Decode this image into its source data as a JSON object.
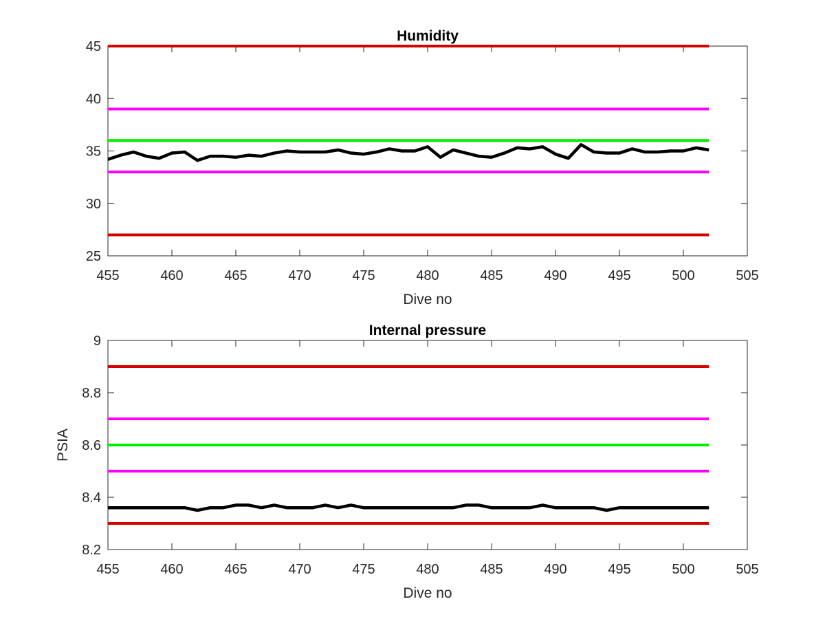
{
  "chart_data": [
    {
      "type": "line",
      "title": "Humidity",
      "xlabel": "Dive no",
      "ylabel": "",
      "xlim": [
        455,
        505
      ],
      "ylim": [
        25,
        45
      ],
      "xticks": [
        455,
        460,
        465,
        470,
        475,
        480,
        485,
        490,
        495,
        500,
        505
      ],
      "yticks": [
        25,
        30,
        35,
        40,
        45
      ],
      "xtick_labels": [
        "455",
        "460",
        "465",
        "470",
        "475",
        "480",
        "485",
        "490",
        "495",
        "500",
        "505"
      ],
      "ytick_labels": [
        "25",
        "30",
        "35",
        "40",
        "45"
      ],
      "grid": false,
      "reference_lines": [
        {
          "y": 45,
          "x_range": [
            455,
            502
          ],
          "color": "#d40000"
        },
        {
          "y": 39,
          "x_range": [
            455,
            502
          ],
          "color": "#ff00ff"
        },
        {
          "y": 36,
          "x_range": [
            455,
            502
          ],
          "color": "#00ee00"
        },
        {
          "y": 33,
          "x_range": [
            455,
            502
          ],
          "color": "#ff00ff"
        },
        {
          "y": 27,
          "x_range": [
            455,
            502
          ],
          "color": "#d40000"
        }
      ],
      "series": [
        {
          "color": "#000000",
          "x": [
            455,
            456,
            457,
            458,
            459,
            460,
            461,
            462,
            463,
            464,
            465,
            466,
            467,
            468,
            469,
            470,
            471,
            472,
            473,
            474,
            475,
            476,
            477,
            478,
            479,
            480,
            481,
            482,
            483,
            484,
            485,
            486,
            487,
            488,
            489,
            490,
            491,
            492,
            493,
            494,
            495,
            496,
            497,
            498,
            499,
            500,
            501,
            502
          ],
          "values": [
            34.2,
            34.6,
            34.9,
            34.5,
            34.3,
            34.8,
            34.9,
            34.1,
            34.5,
            34.5,
            34.4,
            34.6,
            34.5,
            34.8,
            35.0,
            34.9,
            34.9,
            34.9,
            35.1,
            34.8,
            34.7,
            34.9,
            35.2,
            35.0,
            35.0,
            35.4,
            34.4,
            35.1,
            34.8,
            34.5,
            34.4,
            34.8,
            35.3,
            35.2,
            35.4,
            34.7,
            34.3,
            35.6,
            34.9,
            34.8,
            34.8,
            35.2,
            34.9,
            34.9,
            35.0,
            35.0,
            35.3,
            35.1
          ]
        }
      ]
    },
    {
      "type": "line",
      "title": "Internal pressure",
      "xlabel": "Dive no",
      "ylabel": "PSIA",
      "xlim": [
        455,
        505
      ],
      "ylim": [
        8.2,
        9.0
      ],
      "xticks": [
        455,
        460,
        465,
        470,
        475,
        480,
        485,
        490,
        495,
        500,
        505
      ],
      "yticks": [
        8.2,
        8.4,
        8.6,
        8.8,
        9.0
      ],
      "xtick_labels": [
        "455",
        "460",
        "465",
        "470",
        "475",
        "480",
        "485",
        "490",
        "495",
        "500",
        "505"
      ],
      "ytick_labels": [
        "8.2",
        "8.4",
        "8.6",
        "8.8",
        "9"
      ],
      "grid": false,
      "reference_lines": [
        {
          "y": 8.9,
          "x_range": [
            455,
            502
          ],
          "color": "#d40000"
        },
        {
          "y": 8.7,
          "x_range": [
            455,
            502
          ],
          "color": "#ff00ff"
        },
        {
          "y": 8.6,
          "x_range": [
            455,
            502
          ],
          "color": "#00ee00"
        },
        {
          "y": 8.5,
          "x_range": [
            455,
            502
          ],
          "color": "#ff00ff"
        },
        {
          "y": 8.3,
          "x_range": [
            455,
            502
          ],
          "color": "#d40000"
        }
      ],
      "series": [
        {
          "color": "#000000",
          "x": [
            455,
            456,
            457,
            458,
            459,
            460,
            461,
            462,
            463,
            464,
            465,
            466,
            467,
            468,
            469,
            470,
            471,
            472,
            473,
            474,
            475,
            476,
            477,
            478,
            479,
            480,
            481,
            482,
            483,
            484,
            485,
            486,
            487,
            488,
            489,
            490,
            491,
            492,
            493,
            494,
            495,
            496,
            497,
            498,
            499,
            500,
            501,
            502
          ],
          "values": [
            8.36,
            8.36,
            8.36,
            8.36,
            8.36,
            8.36,
            8.36,
            8.35,
            8.36,
            8.36,
            8.37,
            8.37,
            8.36,
            8.37,
            8.36,
            8.36,
            8.36,
            8.37,
            8.36,
            8.37,
            8.36,
            8.36,
            8.36,
            8.36,
            8.36,
            8.36,
            8.36,
            8.36,
            8.37,
            8.37,
            8.36,
            8.36,
            8.36,
            8.36,
            8.37,
            8.36,
            8.36,
            8.36,
            8.36,
            8.35,
            8.36,
            8.36,
            8.36,
            8.36,
            8.36,
            8.36,
            8.36,
            8.36
          ]
        }
      ]
    }
  ]
}
